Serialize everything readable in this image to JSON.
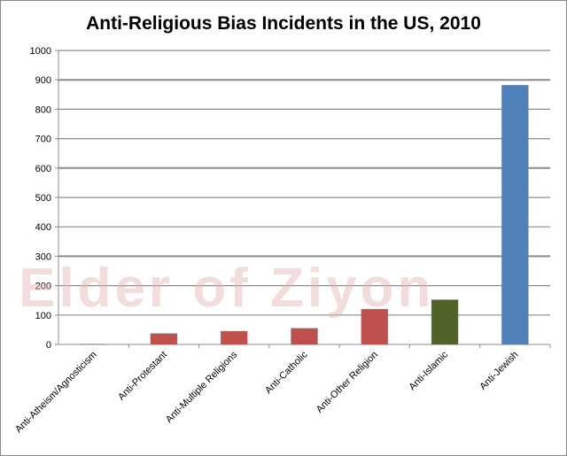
{
  "chart_data": {
    "type": "bar",
    "title": "Anti-Religious Bias Incidents in the US, 2010",
    "xlabel": "",
    "ylabel": "",
    "ylim": [
      0,
      1000
    ],
    "ticks": [
      0,
      100,
      200,
      300,
      400,
      500,
      600,
      700,
      800,
      900,
      1000
    ],
    "categories": [
      "Anti-Atheism/Agnosticism",
      "Anti-Protestant",
      "Anti-Multiple Religions",
      "Anti-Catholic",
      "Anti-Other Religion",
      "Anti-Islamic",
      "Anti-Jewish"
    ],
    "values": [
      1,
      37,
      45,
      55,
      120,
      152,
      882
    ],
    "bar_colors": [
      "#c0504d",
      "#c0504d",
      "#c0504d",
      "#c0504d",
      "#c0504d",
      "#4f6228",
      "#4f81bd"
    ],
    "grid": true,
    "legend": "none"
  },
  "watermark": "Elder of Ziyon"
}
